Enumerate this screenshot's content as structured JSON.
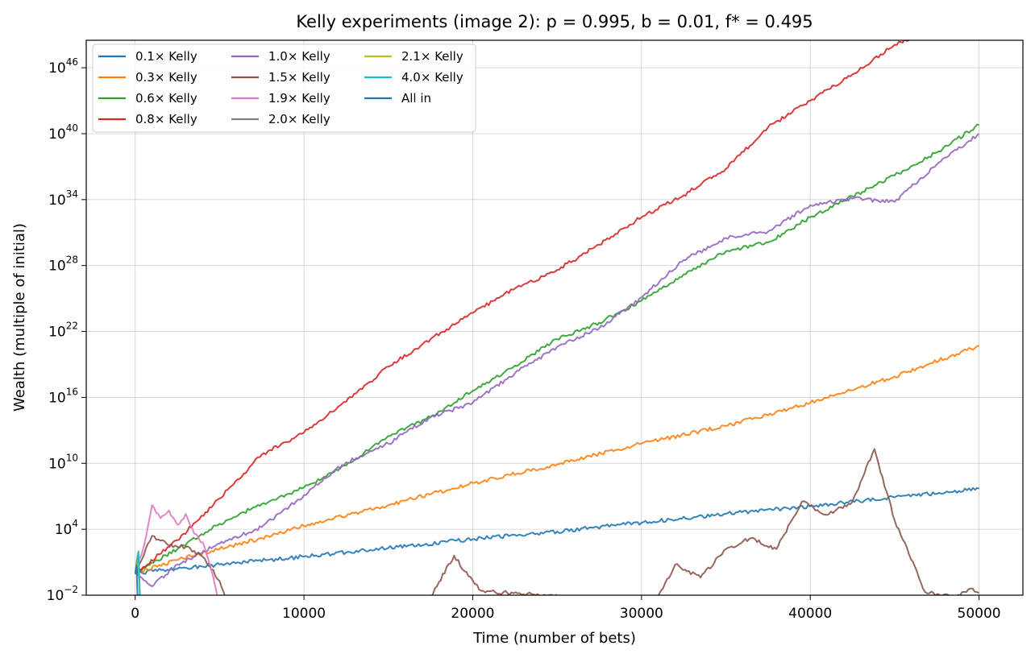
{
  "chart_data": {
    "type": "line",
    "title": "Kelly experiments (image 2): p = 0.995, b = 0.01, f* = 0.495",
    "xlabel": "Time (number of bets)",
    "ylabel": "Wealth (multiple of initial)",
    "xlim": [
      -2900,
      52600
    ],
    "ylim_log10": [
      -2,
      48.5
    ],
    "yscale": "log",
    "grid": true,
    "legend_position": "top-left",
    "x_ticks": [
      0,
      10000,
      20000,
      30000,
      40000,
      50000
    ],
    "x_tick_labels": [
      "0",
      "10000",
      "20000",
      "30000",
      "40000",
      "50000"
    ],
    "y_ticks": [
      {
        "base": "10",
        "exp": "−2",
        "log10": -2
      },
      {
        "base": "10",
        "exp": "4",
        "log10": 4
      },
      {
        "base": "10",
        "exp": "10",
        "log10": 10
      },
      {
        "base": "10",
        "exp": "16",
        "log10": 16
      },
      {
        "base": "10",
        "exp": "22",
        "log10": 22
      },
      {
        "base": "10",
        "exp": "28",
        "log10": 28
      },
      {
        "base": "10",
        "exp": "34",
        "log10": 34
      },
      {
        "base": "10",
        "exp": "40",
        "log10": 40
      },
      {
        "base": "10",
        "exp": "46",
        "log10": 46
      }
    ],
    "series": [
      {
        "name": "0.1× Kelly",
        "color": "#1f77b4",
        "x": [
          0,
          2500,
          5000,
          10000,
          15000,
          20000,
          25000,
          30000,
          35000,
          40000,
          45000,
          50000
        ],
        "log10_y": [
          0,
          0.4,
          0.8,
          1.5,
          2.3,
          3.1,
          3.8,
          4.6,
          5.4,
          6.1,
          6.9,
          7.7
        ]
      },
      {
        "name": "0.3× Kelly",
        "color": "#ff7f0e",
        "x": [
          0,
          2500,
          5000,
          7500,
          10000,
          15000,
          20000,
          25000,
          30000,
          35000,
          40000,
          45000,
          50000
        ],
        "log10_y": [
          0,
          1.2,
          2.2,
          3.2,
          4.3,
          6.2,
          8.2,
          9.9,
          11.8,
          13.4,
          15.5,
          17.9,
          20.7
        ]
      },
      {
        "name": "0.6× Kelly",
        "color": "#2ca02c",
        "x": [
          0,
          2500,
          5000,
          7500,
          10000,
          12500,
          15000,
          17500,
          20000,
          22500,
          25000,
          27500,
          30000,
          32500,
          35000,
          37500,
          40000,
          42500,
          45000,
          47500,
          50000
        ],
        "log10_y": [
          0,
          2.2,
          4.5,
          6.3,
          7.8,
          9.8,
          12.5,
          14.2,
          16.6,
          18.9,
          21.3,
          22.8,
          24.8,
          27.2,
          29.3,
          30.1,
          32.4,
          34.3,
          36.2,
          38.3,
          40.8
        ]
      },
      {
        "name": "0.8× Kelly",
        "color": "#d62728",
        "x": [
          0,
          2500,
          5000,
          7500,
          10000,
          12500,
          15000,
          17500,
          20000,
          22500,
          25000,
          27500,
          30000,
          32500,
          35000,
          37500,
          40000,
          42500,
          45000,
          47500,
          50000
        ],
        "log10_y": [
          0,
          3.0,
          6.8,
          10.8,
          12.8,
          15.6,
          18.8,
          21.3,
          23.7,
          25.9,
          27.6,
          29.9,
          32.4,
          34.4,
          36.8,
          40.6,
          43.0,
          45.4,
          48.1,
          49.6,
          50.5
        ]
      },
      {
        "name": "1.0× Kelly",
        "color": "#9467bd",
        "x": [
          0,
          1000,
          2500,
          5000,
          7500,
          10000,
          12500,
          15000,
          17500,
          20000,
          22500,
          25000,
          27500,
          30000,
          32500,
          35000,
          37500,
          40000,
          42500,
          45000,
          47500,
          50000
        ],
        "log10_y": [
          0,
          -1.2,
          0.8,
          2.7,
          4.2,
          7.1,
          10.1,
          11.8,
          14.2,
          15.5,
          18.2,
          20.6,
          22.3,
          25.1,
          28.5,
          30.5,
          31.1,
          33.5,
          34.1,
          33.8,
          37.2,
          40.0
        ]
      },
      {
        "name": "1.5× Kelly",
        "color": "#8c564b",
        "x": [
          0,
          1000,
          2000,
          3000,
          4000,
          5000,
          5600,
          17200,
          18000,
          18900,
          19500,
          20500,
          30800,
          32000,
          33500,
          35000,
          36500,
          38000,
          39500,
          41000,
          42500,
          43800,
          45000,
          46200,
          46800,
          48500,
          49500,
          50000
        ],
        "log10_y": [
          0,
          3.4,
          2.5,
          2.4,
          1.5,
          -0.7,
          -3.5,
          -3.0,
          -0.8,
          1.6,
          0.2,
          -1.6,
          -2.8,
          0.8,
          -0.4,
          2.2,
          3.2,
          2.2,
          6.5,
          5.3,
          6.5,
          11.3,
          4.8,
          0.6,
          -1.7,
          -2.2,
          -1.4,
          -1.8
        ]
      },
      {
        "name": "1.9× Kelly",
        "color": "#e377c2",
        "x": [
          0,
          500,
          1000,
          1500,
          2000,
          2500,
          3000,
          3500,
          4000,
          4500,
          5000
        ],
        "log10_y": [
          0,
          2.4,
          6.2,
          5.0,
          5.7,
          4.4,
          5.4,
          3.6,
          2.8,
          0.4,
          -3.0
        ]
      },
      {
        "name": "2.0× Kelly",
        "color": "#7f7f7f",
        "x": [
          0,
          150,
          300
        ],
        "log10_y": [
          0,
          1.5,
          -3.0
        ]
      },
      {
        "name": "2.1× Kelly",
        "color": "#bcbd22",
        "x": [
          0,
          150,
          300
        ],
        "log10_y": [
          0,
          1.8,
          -3.0
        ]
      },
      {
        "name": "4.0× Kelly",
        "color": "#17becf",
        "x": [
          0,
          100,
          200,
          300
        ],
        "log10_y": [
          0,
          1.0,
          2.0,
          -3.0
        ]
      },
      {
        "name": "All in",
        "color": "#1f77b4",
        "x": [
          0,
          80,
          160
        ],
        "log10_y": [
          0,
          0.7,
          -3.0
        ]
      }
    ]
  }
}
